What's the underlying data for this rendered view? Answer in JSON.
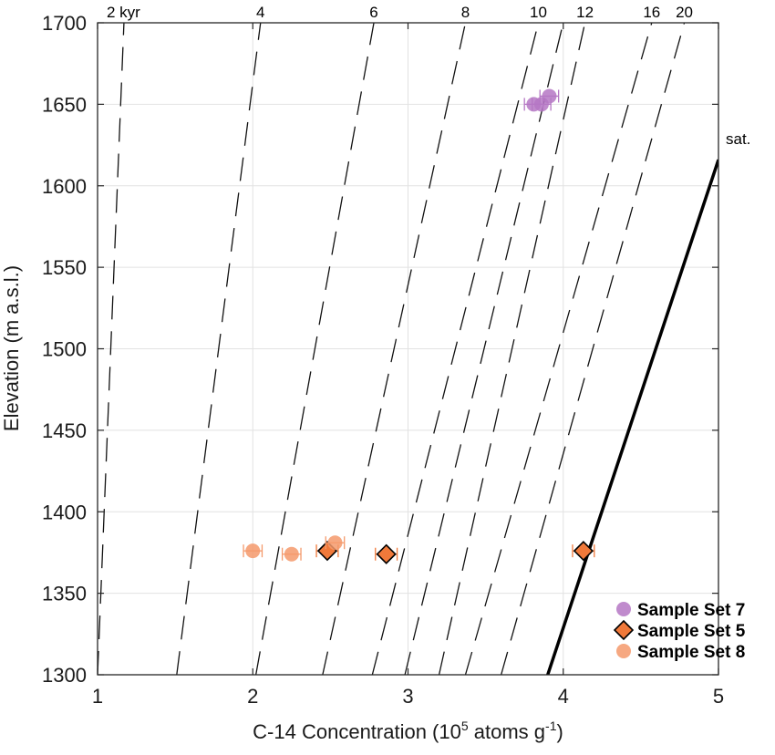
{
  "chart_data": {
    "type": "scatter",
    "xlabel": "C-14 Concentration (10^5 atoms g^-1)",
    "xlabel_parts": {
      "pre": "C-14 Concentration (10",
      "sup1": "5",
      "mid": " atoms g",
      "sup2": "-1",
      "post": ")"
    },
    "ylabel": "Elevation (m a.s.l.)",
    "xlim": [
      1,
      5
    ],
    "ylim": [
      1300,
      1700
    ],
    "x_ticks": [
      1,
      2,
      3,
      4,
      5
    ],
    "y_ticks": [
      1300,
      1350,
      1400,
      1450,
      1500,
      1550,
      1600,
      1650,
      1700
    ],
    "grid": true,
    "isochrons": [
      {
        "label": "2 kyr",
        "x_at_top": 1.17,
        "x_at_bottom": 1.0
      },
      {
        "label": "4",
        "x_at_top": 2.05,
        "x_at_bottom": 1.51
      },
      {
        "label": "6",
        "x_at_top": 2.78,
        "x_at_bottom": 2.02
      },
      {
        "label": "8",
        "x_at_top": 3.37,
        "x_at_bottom": 2.45
      },
      {
        "label": "10",
        "x_at_top": 3.84,
        "x_at_bottom": 2.77
      },
      {
        "label": "",
        "x_at_top": 4.0,
        "x_at_bottom": 2.98
      },
      {
        "label": "12",
        "x_at_top": 4.14,
        "x_at_bottom": 3.2
      },
      {
        "label": "16",
        "x_at_top": 4.57,
        "x_at_bottom": 3.37
      },
      {
        "label": "20",
        "x_at_top": 4.78,
        "x_at_bottom": 3.6
      }
    ],
    "saturation": {
      "label": "sat.",
      "points": [
        [
          3.9,
          1300
        ],
        [
          5.0,
          1616
        ]
      ]
    },
    "series": [
      {
        "name": "Sample Set 7",
        "marker": "circle",
        "color": "#b577c4",
        "points": [
          [
            3.81,
            1650
          ],
          [
            3.86,
            1650
          ],
          [
            3.91,
            1655
          ]
        ],
        "xerr": 0.06
      },
      {
        "name": "Sample Set 5",
        "marker": "diamond",
        "color": "#f0793a",
        "points": [
          [
            2.48,
            1376
          ],
          [
            2.86,
            1374
          ],
          [
            4.13,
            1376
          ]
        ],
        "xerr": 0.07
      },
      {
        "name": "Sample Set 8",
        "marker": "circle",
        "color": "#f4996b",
        "points": [
          [
            2.0,
            1376
          ],
          [
            2.25,
            1374
          ],
          [
            2.53,
            1381
          ]
        ],
        "xerr": 0.06
      }
    ]
  }
}
